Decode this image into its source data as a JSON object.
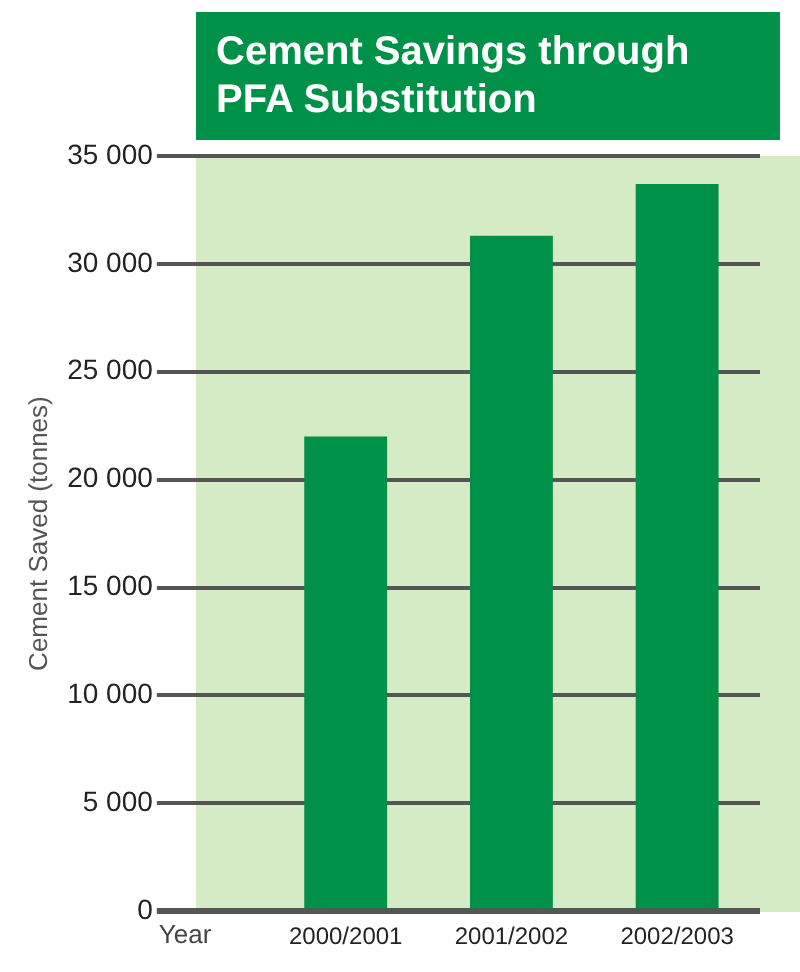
{
  "chart_data": {
    "type": "bar",
    "title": "Cement Savings through PFA Substitution",
    "xlabel": "Year",
    "ylabel": "Cement Saved (tonnes)",
    "categories": [
      "2000/2001",
      "2001/2002",
      "2002/2003"
    ],
    "values": [
      22000,
      31300,
      33700
    ],
    "color": "#009149",
    "ylim": [
      0,
      35000
    ],
    "yticks": [
      {
        "value": 0,
        "label": "0"
      },
      {
        "value": 5000,
        "label": "5 000"
      },
      {
        "value": 10000,
        "label": "10 000"
      },
      {
        "value": 15000,
        "label": "15 000"
      },
      {
        "value": 20000,
        "label": "20 000"
      },
      {
        "value": 25000,
        "label": "25 000"
      },
      {
        "value": 30000,
        "label": "30 000"
      },
      {
        "value": 35000,
        "label": "35 000"
      }
    ],
    "grid": "y",
    "legend": false
  }
}
